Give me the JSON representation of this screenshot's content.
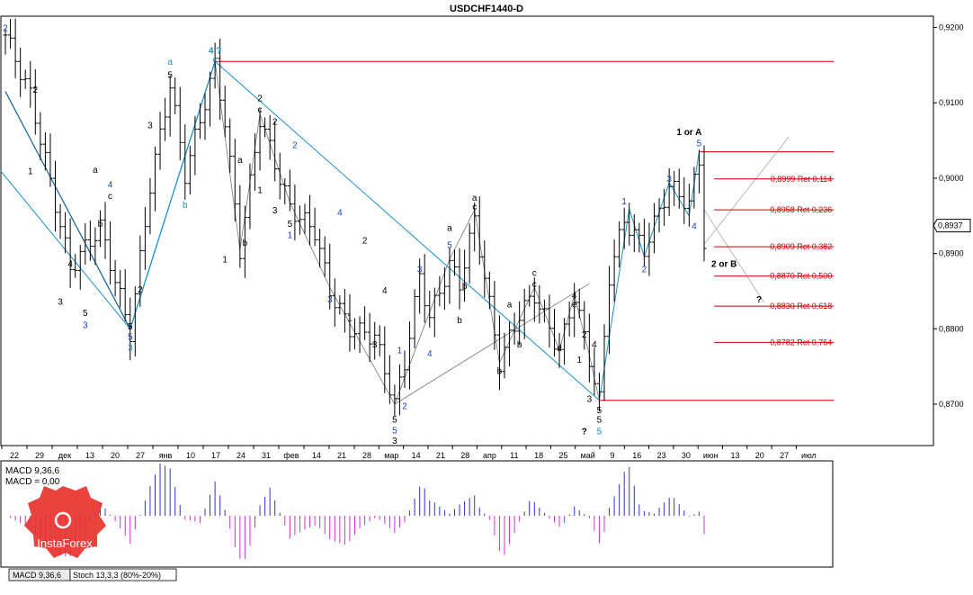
{
  "title": "USDCHF1440-D",
  "chart_data": {
    "type": "candlestick",
    "symbol": "USDCHF",
    "timeframe": "D",
    "y_ticks": [
      "0,9200",
      "0,9100",
      "0,9000",
      "0,8900",
      "0,8800",
      "0,8700"
    ],
    "ylim": [
      0.8645,
      0.9215
    ],
    "current_price": "0,8937",
    "x_ticks": [
      "22",
      "29",
      "дек",
      "13",
      "20",
      "27",
      "янв",
      "10",
      "17",
      "24",
      "31",
      "фев",
      "14",
      "21",
      "28",
      "мар",
      "14",
      "21",
      "28",
      "апр",
      "11",
      "18",
      "25",
      "май",
      "9",
      "16",
      "23",
      "30",
      "июн",
      "13",
      "20",
      "27",
      "июл"
    ],
    "resistance": "0,9155",
    "support": "0,8705",
    "fib_levels": [
      {
        "price": 0.8999,
        "label": "0,8999 Ret 0,114"
      },
      {
        "price": 0.8958,
        "label": "0,8958 Ret 0,236"
      },
      {
        "price": 0.8909,
        "label": "0,8909 Ret 0,382"
      },
      {
        "price": 0.887,
        "label": "0,8870 Ret 0,500"
      },
      {
        "price": 0.883,
        "label": "0,8830 Ret 0,618"
      },
      {
        "price": 0.8782,
        "label": "0,8782 Ret 0,764"
      }
    ],
    "wave_labels": [
      {
        "text": "2",
        "color": "#1a3fbf",
        "bar": 0,
        "price": 0.92
      },
      {
        "text": "2",
        "color": "#000000",
        "bar": 6,
        "price": 0.9118
      },
      {
        "text": "1",
        "color": "#000000",
        "bar": 5,
        "price": 0.901
      },
      {
        "text": "4",
        "color": "#000000",
        "bar": 13,
        "price": 0.8887
      },
      {
        "text": "4",
        "color": "#1a3fbf",
        "bar": 21,
        "price": 0.8992
      },
      {
        "text": "c",
        "color": "#000000",
        "bar": 21,
        "price": 0.8977
      },
      {
        "text": "a",
        "color": "#000000",
        "bar": 18,
        "price": 0.9012
      },
      {
        "text": "b",
        "color": "#000000",
        "bar": 19,
        "price": 0.894
      },
      {
        "text": "3",
        "color": "#000000",
        "bar": 11,
        "price": 0.8837
      },
      {
        "text": "5",
        "color": "#000000",
        "bar": 16,
        "price": 0.8822
      },
      {
        "text": "3",
        "color": "#1a3fbf",
        "bar": 16,
        "price": 0.8806
      },
      {
        "text": "5",
        "color": "#000000",
        "bar": 25,
        "price": 0.8804
      },
      {
        "text": "5",
        "color": "#1a3fbf",
        "bar": 25,
        "price": 0.879
      },
      {
        "text": "3",
        "color": "#1a8fcf",
        "bar": 25,
        "price": 0.8776
      },
      {
        "text": "2",
        "color": "#000000",
        "bar": 27,
        "price": 0.8853
      },
      {
        "text": "3",
        "color": "#000000",
        "bar": 29,
        "price": 0.9071
      },
      {
        "text": "5",
        "color": "#000000",
        "bar": 33,
        "price": 0.9138
      },
      {
        "text": "a",
        "color": "#1a8fcf",
        "bar": 33,
        "price": 0.9155
      },
      {
        "text": "b",
        "color": "#1a8fcf",
        "bar": 36,
        "price": 0.8965
      },
      {
        "text": "4 ?",
        "color": "#1a8fcf",
        "bar": 42,
        "price": 0.917
      },
      {
        "text": "c",
        "color": "#1a8fcf",
        "bar": 42,
        "price": 0.9158
      },
      {
        "text": "2",
        "color": "#000000",
        "bar": 51,
        "price": 0.9107
      },
      {
        "text": "c",
        "color": "#000000",
        "bar": 51,
        "price": 0.9092
      },
      {
        "text": "2",
        "color": "#000000",
        "bar": 54,
        "price": 0.9076
      },
      {
        "text": "a",
        "color": "#000000",
        "bar": 47,
        "price": 0.9025
      },
      {
        "text": "b",
        "color": "#000000",
        "bar": 48,
        "price": 0.8915
      },
      {
        "text": "1",
        "color": "#000000",
        "bar": 44,
        "price": 0.8893
      },
      {
        "text": "1",
        "color": "#000000",
        "bar": 51,
        "price": 0.8985
      },
      {
        "text": "3",
        "color": "#000000",
        "bar": 54,
        "price": 0.8958
      },
      {
        "text": "5",
        "color": "#000000",
        "bar": 57,
        "price": 0.894
      },
      {
        "text": "1",
        "color": "#1a3fbf",
        "bar": 57,
        "price": 0.8925
      },
      {
        "text": "2",
        "color": "#1a3fbf",
        "bar": 58,
        "price": 0.9045
      },
      {
        "text": "4",
        "color": "#1a3fbf",
        "bar": 67,
        "price": 0.8955
      },
      {
        "text": "3",
        "color": "#1a3fbf",
        "bar": 65,
        "price": 0.884
      },
      {
        "text": "2",
        "color": "#000000",
        "bar": 72,
        "price": 0.8918
      },
      {
        "text": "4",
        "color": "#000000",
        "bar": 76,
        "price": 0.8852
      },
      {
        "text": "1",
        "color": "#000000",
        "bar": 69,
        "price": 0.8815
      },
      {
        "text": "3",
        "color": "#000000",
        "bar": 74,
        "price": 0.878
      },
      {
        "text": "1",
        "color": "#1a3fbf",
        "bar": 79,
        "price": 0.8772
      },
      {
        "text": "5",
        "color": "#000000",
        "bar": 78,
        "price": 0.868
      },
      {
        "text": "5",
        "color": "#1a3fbf",
        "bar": 78,
        "price": 0.8666
      },
      {
        "text": "3",
        "color": "#000000",
        "bar": 78,
        "price": 0.8652
      },
      {
        "text": "2",
        "color": "#1a3fbf",
        "bar": 80,
        "price": 0.8698
      },
      {
        "text": "3",
        "color": "#1a3fbf",
        "bar": 83,
        "price": 0.888
      },
      {
        "text": "4",
        "color": "#1a3fbf",
        "bar": 85,
        "price": 0.8768
      },
      {
        "text": "a",
        "color": "#000000",
        "bar": 89,
        "price": 0.8935
      },
      {
        "text": "5",
        "color": "#1a3fbf",
        "bar": 89,
        "price": 0.8912
      },
      {
        "text": "b",
        "color": "#000000",
        "bar": 91,
        "price": 0.8812
      },
      {
        "text": "a",
        "color": "#000000",
        "bar": 94,
        "price": 0.8975
      },
      {
        "text": "c",
        "color": "#000000",
        "bar": 94,
        "price": 0.8963
      },
      {
        "text": "b",
        "color": "#000000",
        "bar": 92,
        "price": 0.8858
      },
      {
        "text": "b",
        "color": "#000000",
        "bar": 99,
        "price": 0.8745
      },
      {
        "text": "a",
        "color": "#000000",
        "bar": 101,
        "price": 0.8833
      },
      {
        "text": "b",
        "color": "#000000",
        "bar": 103,
        "price": 0.878
      },
      {
        "text": "c",
        "color": "#000000",
        "bar": 106,
        "price": 0.8875
      },
      {
        "text": "c",
        "color": "#000000",
        "bar": 106,
        "price": 0.886
      },
      {
        "text": "d",
        "color": "#000000",
        "bar": 111,
        "price": 0.8775
      },
      {
        "text": "4",
        "color": "#000000",
        "bar": 114,
        "price": 0.8845
      },
      {
        "text": "e",
        "color": "#000000",
        "bar": 114,
        "price": 0.8833
      },
      {
        "text": "2",
        "color": "#000000",
        "bar": 116,
        "price": 0.8793
      },
      {
        "text": "1",
        "color": "#000000",
        "bar": 115,
        "price": 0.876
      },
      {
        "text": "4",
        "color": "#000000",
        "bar": 118,
        "price": 0.878
      },
      {
        "text": "3",
        "color": "#000000",
        "bar": 117,
        "price": 0.8708
      },
      {
        "text": "5",
        "color": "#000000",
        "bar": 119,
        "price": 0.8693
      },
      {
        "text": "5",
        "color": "#000000",
        "bar": 119,
        "price": 0.868
      },
      {
        "text": "5",
        "color": "#1a8fcf",
        "bar": 119,
        "price": 0.8665
      },
      {
        "text": "?",
        "color": "#000000",
        "bar": 116,
        "price": 0.8665
      },
      {
        "text": "1",
        "color": "#1a3fbf",
        "bar": 124,
        "price": 0.897
      },
      {
        "text": "2",
        "color": "#1a3fbf",
        "bar": 128,
        "price": 0.888
      },
      {
        "text": "3",
        "color": "#1a3fbf",
        "bar": 133,
        "price": 0.9
      },
      {
        "text": "4",
        "color": "#1a3fbf",
        "bar": 138,
        "price": 0.8937
      },
      {
        "text": "1 or A",
        "color": "#000000",
        "bar": 137,
        "price": 0.9062
      },
      {
        "text": "5",
        "color": "#1a3fbf",
        "bar": 139,
        "price": 0.9047
      },
      {
        "text": "2 or B",
        "color": "#000000",
        "bar": 144,
        "price": 0.8887
      },
      {
        "text": "?",
        "color": "#000000",
        "bar": 151,
        "price": 0.884
      }
    ],
    "indicator_macd": {
      "label1": "MACD 9,36,6",
      "label2": "MACD = 0,00"
    },
    "tabs": [
      "MACD 9,36,6",
      "Stoch 13,3,3 (80%-20%)"
    ],
    "watermark": "InstaForex"
  }
}
